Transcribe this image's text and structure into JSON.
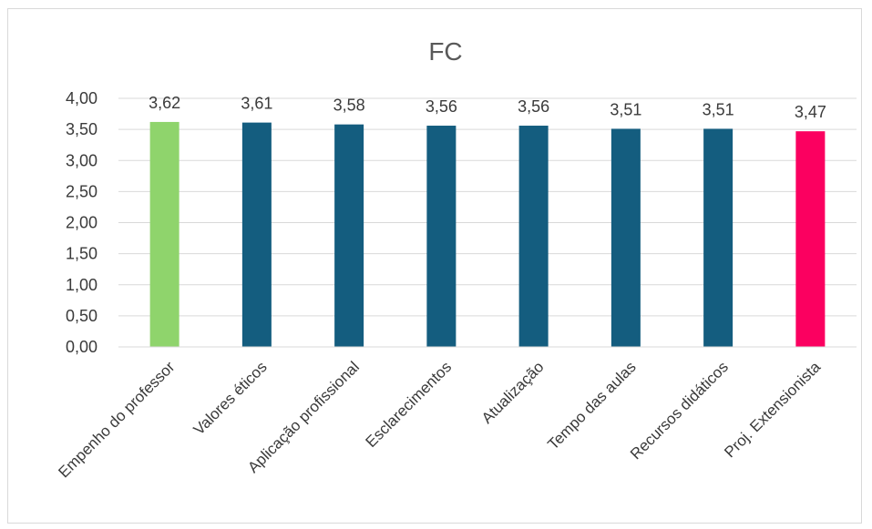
{
  "chart_data": {
    "type": "bar",
    "title": "FC",
    "categories": [
      "Empenho do professor",
      "Valores éticos",
      "Aplicação profissional",
      "Esclarecimentos",
      "Atualização",
      "Tempo das aulas",
      "Recursos didáticos",
      "Proj. Extensionista"
    ],
    "values": [
      3.62,
      3.61,
      3.58,
      3.56,
      3.56,
      3.51,
      3.51,
      3.47
    ],
    "value_labels": [
      "3,62",
      "3,61",
      "3,58",
      "3,56",
      "3,56",
      "3,51",
      "3,51",
      "3,47"
    ],
    "bar_colors": [
      "#8fd46c",
      "#145d7f",
      "#145d7f",
      "#145d7f",
      "#145d7f",
      "#145d7f",
      "#145d7f",
      "#fb0060"
    ],
    "ylim": [
      0,
      4
    ],
    "yticks": [
      0,
      0.5,
      1,
      1.5,
      2,
      2.5,
      3,
      3.5,
      4
    ],
    "ytick_labels": [
      "0,00",
      "0,50",
      "1,00",
      "1,50",
      "2,00",
      "2,50",
      "3,00",
      "3,50",
      "4,00"
    ],
    "xlabel": "",
    "ylabel": "",
    "grid": true,
    "legend": "none"
  }
}
